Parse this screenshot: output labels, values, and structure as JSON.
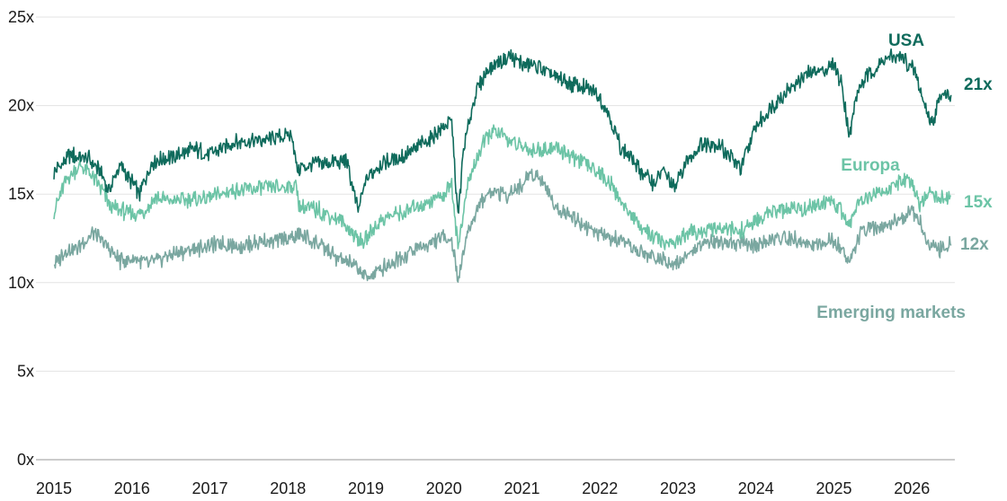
{
  "chart_data": {
    "type": "line",
    "title": "",
    "xlabel": "",
    "ylabel": "",
    "xlim": [
      2015,
      2026.55
    ],
    "ylim": [
      0,
      25
    ],
    "grid": "horizontal",
    "legend": "inline labels",
    "x_ticks": [
      "2015",
      "2016",
      "2017",
      "2018",
      "2019",
      "2020",
      "2021",
      "2022",
      "2023",
      "2024",
      "2025",
      "2026"
    ],
    "y_ticks": [
      "0x",
      "5x",
      "10x",
      "15x",
      "20x",
      "25x"
    ],
    "series": [
      {
        "name": "USA",
        "color": "#0f6b5c",
        "end_label": "21x",
        "x": [
          2015.0,
          2015.2,
          2015.45,
          2015.6,
          2015.7,
          2015.85,
          2016.1,
          2016.25,
          2016.5,
          2016.8,
          2017.0,
          2017.3,
          2017.6,
          2017.9,
          2018.05,
          2018.12,
          2018.3,
          2018.6,
          2018.75,
          2018.9,
          2019.0,
          2019.2,
          2019.5,
          2019.8,
          2020.0,
          2020.1,
          2020.18,
          2020.25,
          2020.4,
          2020.55,
          2020.7,
          2020.85,
          2021.0,
          2021.2,
          2021.4,
          2021.6,
          2021.8,
          2021.95,
          2022.1,
          2022.25,
          2022.4,
          2022.55,
          2022.7,
          2022.8,
          2022.95,
          2023.1,
          2023.3,
          2023.5,
          2023.65,
          2023.8,
          2024.0,
          2024.2,
          2024.4,
          2024.6,
          2024.8,
          2025.0,
          2025.1,
          2025.2,
          2025.3,
          2025.45,
          2025.6,
          2025.75,
          2025.9,
          2026.05,
          2026.15,
          2026.25,
          2026.4,
          2026.5
        ],
        "values": [
          16.2,
          17.2,
          17.0,
          16.2,
          15.2,
          16.6,
          15.0,
          16.8,
          17.1,
          17.5,
          17.3,
          17.9,
          18.0,
          18.2,
          18.4,
          16.4,
          16.7,
          16.8,
          16.9,
          14.0,
          15.8,
          16.8,
          17.2,
          18.0,
          18.8,
          19.2,
          13.6,
          17.4,
          20.6,
          22.0,
          22.5,
          22.8,
          22.4,
          22.2,
          21.7,
          21.3,
          21.0,
          20.8,
          19.7,
          17.8,
          17.0,
          16.2,
          15.6,
          16.4,
          15.3,
          16.8,
          17.8,
          17.9,
          17.2,
          16.4,
          18.8,
          19.9,
          20.8,
          21.6,
          22.0,
          22.2,
          21.2,
          18.3,
          20.8,
          21.8,
          22.4,
          22.8,
          22.6,
          21.8,
          20.2,
          19.0,
          20.9,
          20.6
        ]
      },
      {
        "name": "Europa",
        "color": "#6cc4a6",
        "end_label": "15x",
        "x": [
          2015.0,
          2015.15,
          2015.35,
          2015.5,
          2015.75,
          2016.1,
          2016.3,
          2016.5,
          2016.75,
          2017.0,
          2017.3,
          2017.6,
          2017.9,
          2018.1,
          2018.15,
          2018.4,
          2018.7,
          2018.95,
          2019.2,
          2019.5,
          2019.8,
          2020.0,
          2020.1,
          2020.18,
          2020.3,
          2020.45,
          2020.6,
          2020.8,
          2021.0,
          2021.2,
          2021.45,
          2021.7,
          2021.95,
          2022.1,
          2022.3,
          2022.5,
          2022.7,
          2022.85,
          2023.0,
          2023.2,
          2023.5,
          2023.8,
          2024.0,
          2024.2,
          2024.4,
          2024.6,
          2024.8,
          2025.0,
          2025.1,
          2025.2,
          2025.3,
          2025.5,
          2025.7,
          2025.85,
          2026.0,
          2026.1,
          2026.2,
          2026.35,
          2026.5
        ],
        "values": [
          14.0,
          15.8,
          16.6,
          16.0,
          14.2,
          13.8,
          14.8,
          14.6,
          14.7,
          14.8,
          15.2,
          15.3,
          15.4,
          15.5,
          14.2,
          14.1,
          13.4,
          12.2,
          13.6,
          14.0,
          14.6,
          15.0,
          15.6,
          12.0,
          15.4,
          17.4,
          18.5,
          18.2,
          17.6,
          17.5,
          17.6,
          17.0,
          16.4,
          15.8,
          14.4,
          13.3,
          12.5,
          12.2,
          12.4,
          12.9,
          13.0,
          12.9,
          13.4,
          14.0,
          14.1,
          14.2,
          14.3,
          14.7,
          14.0,
          13.2,
          14.6,
          15.0,
          15.3,
          15.7,
          15.8,
          14.4,
          15.2,
          14.8,
          14.9
        ]
      },
      {
        "name": "Emerging markets",
        "color": "#7aa7a0",
        "end_label": "12x",
        "x": [
          2015.0,
          2015.15,
          2015.3,
          2015.5,
          2015.65,
          2015.85,
          2016.05,
          2016.2,
          2016.5,
          2016.8,
          2017.1,
          2017.4,
          2017.7,
          2018.0,
          2018.15,
          2018.35,
          2018.6,
          2018.9,
          2019.0,
          2019.2,
          2019.5,
          2019.8,
          2020.0,
          2020.1,
          2020.18,
          2020.3,
          2020.45,
          2020.6,
          2020.8,
          2021.0,
          2021.1,
          2021.25,
          2021.45,
          2021.7,
          2021.95,
          2022.2,
          2022.4,
          2022.6,
          2022.8,
          2023.0,
          2023.2,
          2023.4,
          2023.6,
          2023.8,
          2024.0,
          2024.2,
          2024.4,
          2024.6,
          2024.8,
          2025.0,
          2025.1,
          2025.2,
          2025.35,
          2025.55,
          2025.75,
          2025.9,
          2026.0,
          2026.1,
          2026.2,
          2026.35,
          2026.5
        ],
        "values": [
          11.0,
          11.8,
          12.0,
          12.8,
          12.2,
          11.2,
          11.4,
          11.0,
          11.6,
          11.9,
          12.2,
          12.1,
          12.3,
          12.5,
          12.7,
          12.3,
          11.5,
          10.8,
          10.3,
          10.8,
          11.6,
          12.2,
          12.6,
          12.4,
          10.2,
          12.8,
          14.4,
          15.2,
          15.0,
          15.4,
          16.3,
          15.8,
          14.2,
          13.6,
          12.8,
          12.4,
          12.0,
          11.6,
          11.3,
          11.2,
          11.8,
          12.4,
          12.3,
          12.2,
          12.1,
          12.4,
          12.5,
          12.3,
          12.1,
          12.4,
          11.8,
          11.3,
          12.8,
          13.2,
          13.4,
          13.8,
          14.1,
          13.5,
          12.2,
          11.9,
          12.1
        ]
      }
    ]
  }
}
